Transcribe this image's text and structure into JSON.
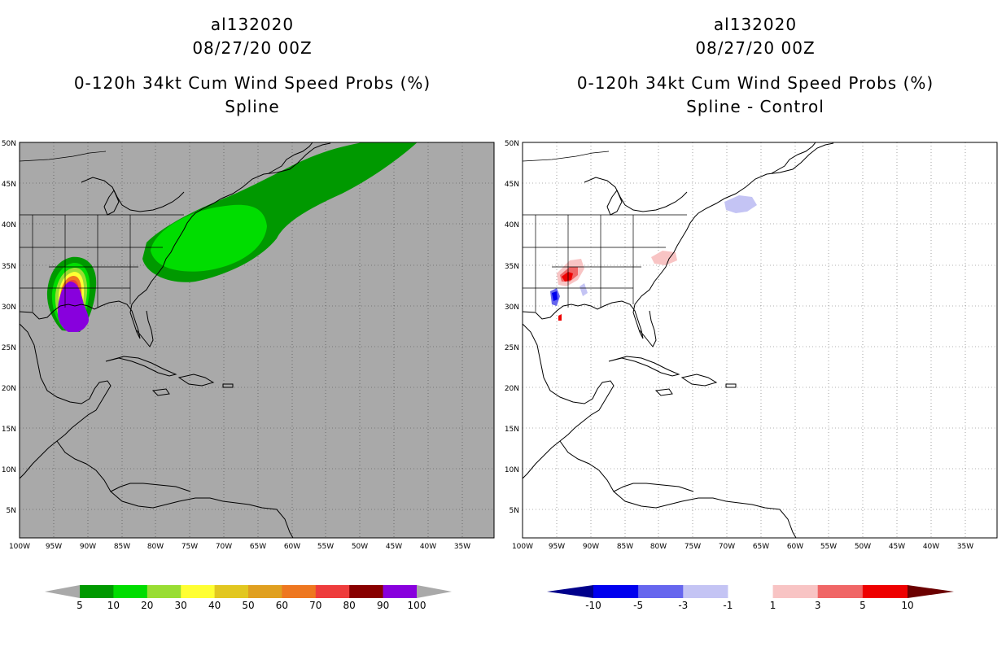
{
  "left_panel": {
    "title_lines": [
      "al132020",
      "08/27/20 00Z",
      "0-120h 34kt Cum Wind Speed Probs (%)",
      "Spline"
    ],
    "colorbar": {
      "labels": [
        "5",
        "10",
        "20",
        "30",
        "40",
        "50",
        "60",
        "70",
        "80",
        "90",
        "100"
      ],
      "colors": [
        "#009900",
        "#00dd00",
        "#99dd33",
        "#ffff33",
        "#e2c720",
        "#e0a020",
        "#ee7720",
        "#ee3c3c",
        "#880000",
        "#8800dd"
      ]
    }
  },
  "right_panel": {
    "title_lines": [
      "al132020",
      "08/27/20 00Z",
      "0-120h 34kt Cum Wind Speed Probs (%)",
      "Spline - Control"
    ],
    "colorbar": {
      "labels": [
        "-10",
        "-5",
        "-3",
        "-1",
        "1",
        "3",
        "5",
        "10"
      ],
      "colors": [
        "#0000ee",
        "#6666ee",
        "#c4c4f4",
        "#ffffff",
        "#f8c4c4",
        "#f06666",
        "#ee0000"
      ]
    }
  },
  "map_axes": {
    "lat_labels": [
      "50N",
      "45N",
      "40N",
      "35N",
      "30N",
      "25N",
      "20N",
      "15N",
      "10N",
      "5N"
    ],
    "lon_labels": [
      "100W",
      "95W",
      "90W",
      "85W",
      "80W",
      "75W",
      "70W",
      "65W",
      "60W",
      "55W",
      "50W",
      "45W",
      "40W",
      "35W"
    ]
  },
  "colors": {
    "ocean_left": "#a9a9a9",
    "ocean_right": "#ffffff",
    "coast": "#000000"
  }
}
